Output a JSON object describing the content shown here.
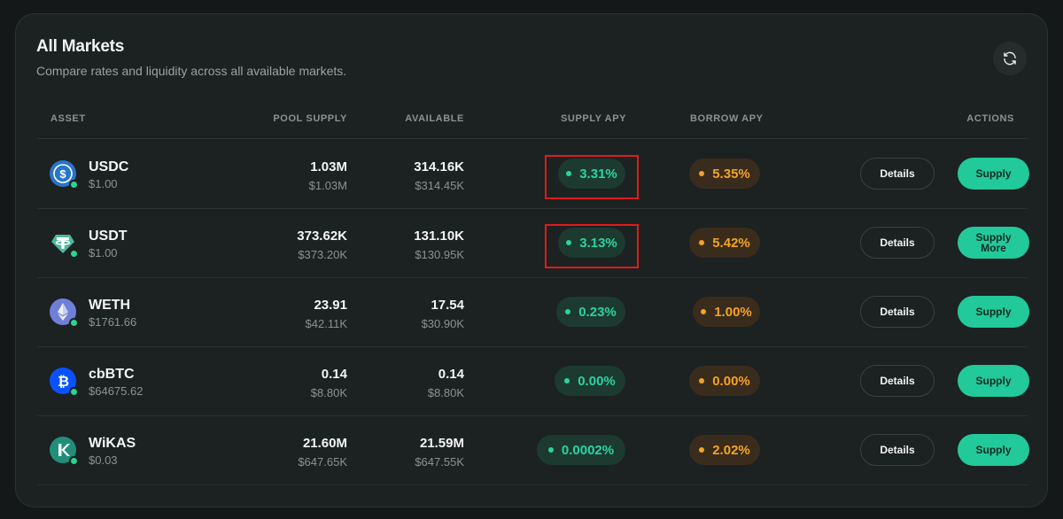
{
  "header": {
    "title": "All Markets",
    "subtitle": "Compare rates and liquidity across all available markets.",
    "refresh_icon": "refresh-icon"
  },
  "columns": {
    "asset": "ASSET",
    "pool_supply": "POOL SUPPLY",
    "available": "AVAILABLE",
    "supply_apy": "SUPPLY APY",
    "borrow_apy": "BORROW APY",
    "actions": "ACTIONS"
  },
  "colors": {
    "accent_green": "#22c99a",
    "borrow_orange": "#f5a325",
    "highlight_red": "#e01b1b",
    "background": "#141818",
    "card": "#1c2121"
  },
  "rows": [
    {
      "asset": "USDC",
      "price": "$1.00",
      "icon": "usdc-icon",
      "pool_supply": "1.03M",
      "pool_supply_usd": "$1.03M",
      "available": "314.16K",
      "available_usd": "$314.45K",
      "supply_apy": "3.31%",
      "borrow_apy": "5.35%",
      "details_label": "Details",
      "supply_label": "Supply",
      "highlighted": true
    },
    {
      "asset": "USDT",
      "price": "$1.00",
      "icon": "usdt-icon",
      "pool_supply": "373.62K",
      "pool_supply_usd": "$373.20K",
      "available": "131.10K",
      "available_usd": "$130.95K",
      "supply_apy": "3.13%",
      "borrow_apy": "5.42%",
      "details_label": "Details",
      "supply_label": "Supply More",
      "highlighted": true
    },
    {
      "asset": "WETH",
      "price": "$1761.66",
      "icon": "weth-icon",
      "pool_supply": "23.91",
      "pool_supply_usd": "$42.11K",
      "available": "17.54",
      "available_usd": "$30.90K",
      "supply_apy": "0.23%",
      "borrow_apy": "1.00%",
      "details_label": "Details",
      "supply_label": "Supply",
      "highlighted": false
    },
    {
      "asset": "cbBTC",
      "price": "$64675.62",
      "icon": "cbbtc-icon",
      "pool_supply": "0.14",
      "pool_supply_usd": "$8.80K",
      "available": "0.14",
      "available_usd": "$8.80K",
      "supply_apy": "0.00%",
      "borrow_apy": "0.00%",
      "details_label": "Details",
      "supply_label": "Supply",
      "highlighted": false
    },
    {
      "asset": "WiKAS",
      "price": "$0.03",
      "icon": "wikas-icon",
      "pool_supply": "21.60M",
      "pool_supply_usd": "$647.65K",
      "available": "21.59M",
      "available_usd": "$647.55K",
      "supply_apy": "0.0002%",
      "borrow_apy": "2.02%",
      "details_label": "Details",
      "supply_label": "Supply",
      "highlighted": false
    }
  ]
}
